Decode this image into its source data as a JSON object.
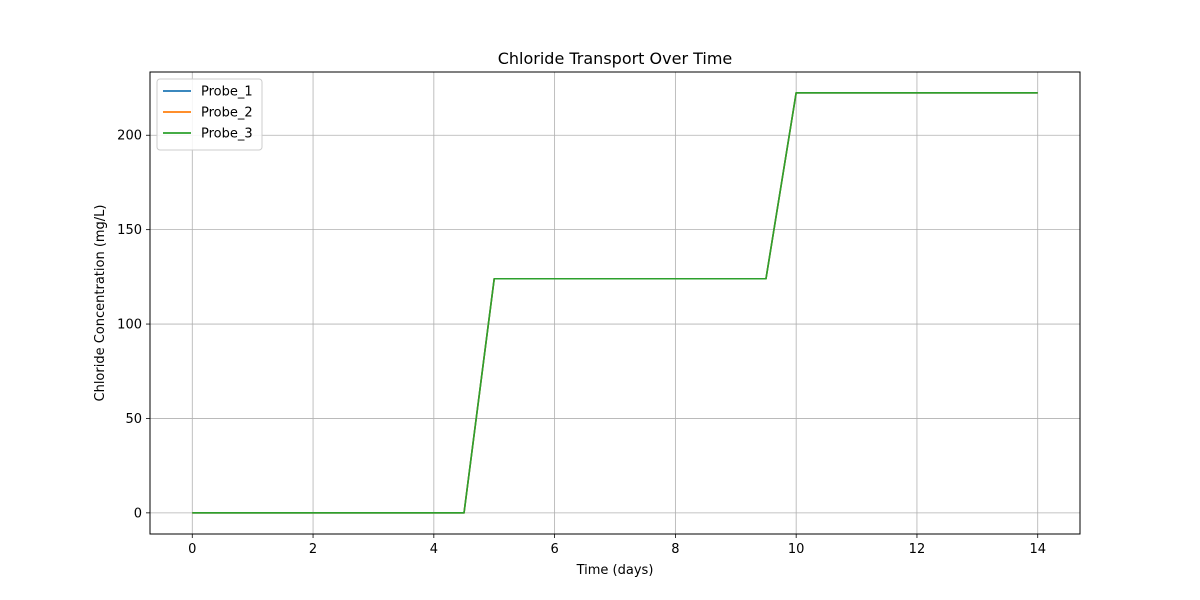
{
  "chart_data": {
    "type": "line",
    "title": "Chloride Transport Over Time",
    "xlabel": "Time (days)",
    "ylabel": "Chloride Concentration (mg/L)",
    "xlim": [
      -0.7,
      14.7
    ],
    "ylim": [
      -11.2,
      233.5
    ],
    "xticks": [
      0,
      2,
      4,
      6,
      8,
      10,
      12,
      14
    ],
    "yticks": [
      0,
      50,
      100,
      150,
      200
    ],
    "grid": true,
    "legend_position": "top-left",
    "series": [
      {
        "name": "Probe_1",
        "color": "#1f77b4",
        "x": [
          0,
          4.5,
          5,
          9.5,
          10,
          14
        ],
        "y": [
          0,
          0,
          124,
          124,
          222.5,
          222.5
        ]
      },
      {
        "name": "Probe_2",
        "color": "#ff7f0e",
        "x": [
          0,
          4.5,
          5,
          9.5,
          10,
          14
        ],
        "y": [
          0,
          0,
          124,
          124,
          222.5,
          222.5
        ]
      },
      {
        "name": "Probe_3",
        "color": "#2ca02c",
        "x": [
          0,
          4.5,
          5,
          9.5,
          10,
          14
        ],
        "y": [
          0,
          0,
          124,
          124,
          222.5,
          222.5
        ]
      }
    ]
  }
}
